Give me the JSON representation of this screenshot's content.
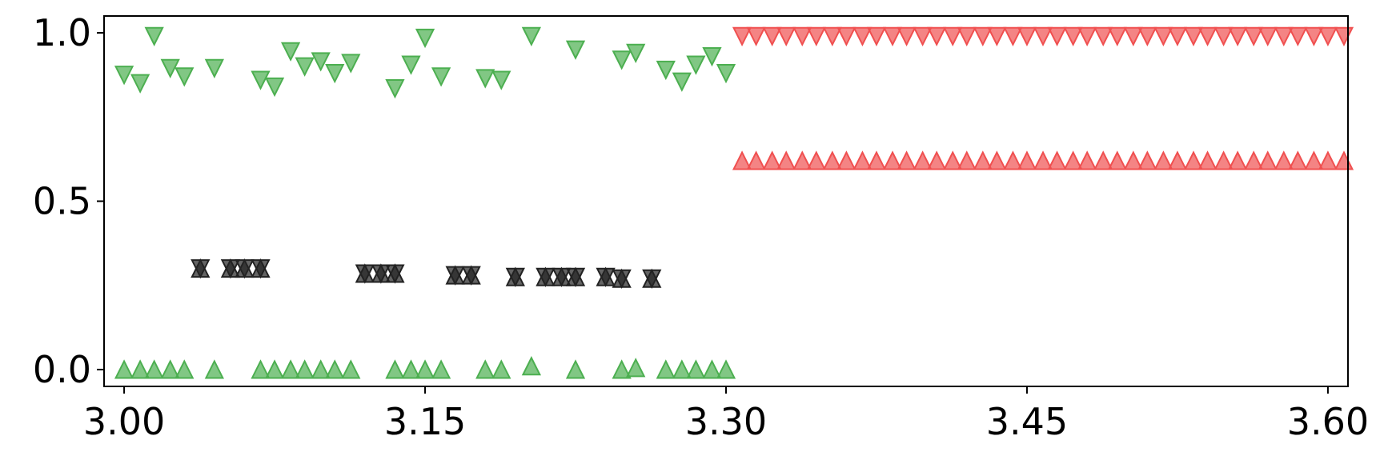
{
  "chart_data": {
    "type": "scatter",
    "title": "",
    "xlabel": "",
    "ylabel": "",
    "xlim": [
      2.99,
      3.61
    ],
    "ylim": [
      -0.05,
      1.05
    ],
    "grid": false,
    "legend": "none",
    "x_ticks": [
      3.0,
      3.15,
      3.3,
      3.45,
      3.6
    ],
    "x_tick_labels": [
      "3.00",
      "3.15",
      "3.30",
      "3.45",
      "3.60"
    ],
    "y_ticks": [
      0.0,
      0.5,
      1.0
    ],
    "y_tick_labels": [
      "0.0",
      "0.5",
      "1.0"
    ],
    "series": [
      {
        "marker": "triangle-down",
        "color": "#4caf50",
        "points": [
          [
            3.0,
            0.875
          ],
          [
            3.008,
            0.85
          ],
          [
            3.015,
            0.99
          ],
          [
            3.023,
            0.895
          ],
          [
            3.03,
            0.87
          ],
          [
            3.045,
            0.895
          ],
          [
            3.068,
            0.86
          ],
          [
            3.075,
            0.84
          ],
          [
            3.083,
            0.945
          ],
          [
            3.09,
            0.9
          ],
          [
            3.098,
            0.915
          ],
          [
            3.105,
            0.88
          ],
          [
            3.113,
            0.91
          ],
          [
            3.135,
            0.835
          ],
          [
            3.143,
            0.905
          ],
          [
            3.15,
            0.985
          ],
          [
            3.158,
            0.87
          ],
          [
            3.18,
            0.865
          ],
          [
            3.188,
            0.86
          ],
          [
            3.203,
            0.99
          ],
          [
            3.225,
            0.95
          ],
          [
            3.248,
            0.92
          ],
          [
            3.255,
            0.94
          ],
          [
            3.27,
            0.89
          ],
          [
            3.278,
            0.855
          ],
          [
            3.285,
            0.905
          ],
          [
            3.293,
            0.93
          ],
          [
            3.3,
            0.88
          ]
        ]
      },
      {
        "marker": "triangle-up",
        "color": "#4caf50",
        "points": [
          [
            3.0,
            0.0
          ],
          [
            3.008,
            0.0
          ],
          [
            3.015,
            0.0
          ],
          [
            3.023,
            0.0
          ],
          [
            3.03,
            0.0
          ],
          [
            3.045,
            0.0
          ],
          [
            3.068,
            0.0
          ],
          [
            3.075,
            0.0
          ],
          [
            3.083,
            0.0
          ],
          [
            3.09,
            0.0
          ],
          [
            3.098,
            0.0
          ],
          [
            3.105,
            0.0
          ],
          [
            3.113,
            0.0
          ],
          [
            3.135,
            0.0
          ],
          [
            3.143,
            0.0
          ],
          [
            3.15,
            0.0
          ],
          [
            3.158,
            0.0
          ],
          [
            3.18,
            0.0
          ],
          [
            3.188,
            0.0
          ],
          [
            3.203,
            0.01
          ],
          [
            3.225,
            0.0
          ],
          [
            3.248,
            0.0
          ],
          [
            3.255,
            0.005
          ],
          [
            3.27,
            0.0
          ],
          [
            3.278,
            0.0
          ],
          [
            3.285,
            0.0
          ],
          [
            3.293,
            0.0
          ],
          [
            3.3,
            0.0
          ]
        ]
      },
      {
        "marker": "triangle-up",
        "color": "#222222",
        "points": [
          [
            3.038,
            0.3
          ],
          [
            3.053,
            0.3
          ],
          [
            3.06,
            0.3
          ],
          [
            3.068,
            0.3
          ],
          [
            3.12,
            0.285
          ],
          [
            3.128,
            0.285
          ],
          [
            3.135,
            0.285
          ],
          [
            3.165,
            0.28
          ],
          [
            3.173,
            0.28
          ],
          [
            3.195,
            0.275
          ],
          [
            3.21,
            0.275
          ],
          [
            3.218,
            0.275
          ],
          [
            3.225,
            0.275
          ],
          [
            3.24,
            0.275
          ],
          [
            3.248,
            0.27
          ],
          [
            3.263,
            0.27
          ]
        ]
      },
      {
        "marker": "triangle-down",
        "color": "#222222",
        "points": [
          [
            3.038,
            0.3
          ],
          [
            3.053,
            0.3
          ],
          [
            3.06,
            0.3
          ],
          [
            3.068,
            0.3
          ],
          [
            3.12,
            0.285
          ],
          [
            3.128,
            0.285
          ],
          [
            3.135,
            0.285
          ],
          [
            3.165,
            0.28
          ],
          [
            3.173,
            0.28
          ],
          [
            3.195,
            0.275
          ],
          [
            3.21,
            0.275
          ],
          [
            3.218,
            0.275
          ],
          [
            3.225,
            0.275
          ],
          [
            3.24,
            0.275
          ],
          [
            3.248,
            0.27
          ],
          [
            3.263,
            0.27
          ]
        ]
      },
      {
        "marker": "triangle-down",
        "color": "#f05050",
        "points": [
          [
            3.308,
            0.99
          ],
          [
            3.315,
            0.99
          ],
          [
            3.323,
            0.99
          ],
          [
            3.33,
            0.99
          ],
          [
            3.338,
            0.99
          ],
          [
            3.345,
            0.99
          ],
          [
            3.353,
            0.99
          ],
          [
            3.36,
            0.99
          ],
          [
            3.368,
            0.99
          ],
          [
            3.375,
            0.99
          ],
          [
            3.383,
            0.99
          ],
          [
            3.39,
            0.99
          ],
          [
            3.398,
            0.99
          ],
          [
            3.405,
            0.99
          ],
          [
            3.413,
            0.99
          ],
          [
            3.42,
            0.99
          ],
          [
            3.428,
            0.99
          ],
          [
            3.435,
            0.99
          ],
          [
            3.443,
            0.99
          ],
          [
            3.45,
            0.99
          ],
          [
            3.458,
            0.99
          ],
          [
            3.465,
            0.99
          ],
          [
            3.473,
            0.99
          ],
          [
            3.48,
            0.99
          ],
          [
            3.488,
            0.99
          ],
          [
            3.495,
            0.99
          ],
          [
            3.503,
            0.99
          ],
          [
            3.51,
            0.99
          ],
          [
            3.518,
            0.99
          ],
          [
            3.525,
            0.99
          ],
          [
            3.533,
            0.99
          ],
          [
            3.54,
            0.99
          ],
          [
            3.548,
            0.99
          ],
          [
            3.555,
            0.99
          ],
          [
            3.563,
            0.99
          ],
          [
            3.57,
            0.99
          ],
          [
            3.578,
            0.99
          ],
          [
            3.585,
            0.99
          ],
          [
            3.593,
            0.99
          ],
          [
            3.6,
            0.99
          ],
          [
            3.608,
            0.99
          ]
        ]
      },
      {
        "marker": "triangle-up",
        "color": "#f05050",
        "points": [
          [
            3.308,
            0.62
          ],
          [
            3.315,
            0.62
          ],
          [
            3.323,
            0.62
          ],
          [
            3.33,
            0.62
          ],
          [
            3.338,
            0.62
          ],
          [
            3.345,
            0.62
          ],
          [
            3.353,
            0.62
          ],
          [
            3.36,
            0.62
          ],
          [
            3.368,
            0.62
          ],
          [
            3.375,
            0.62
          ],
          [
            3.383,
            0.62
          ],
          [
            3.39,
            0.62
          ],
          [
            3.398,
            0.62
          ],
          [
            3.405,
            0.62
          ],
          [
            3.413,
            0.62
          ],
          [
            3.42,
            0.62
          ],
          [
            3.428,
            0.62
          ],
          [
            3.435,
            0.62
          ],
          [
            3.443,
            0.62
          ],
          [
            3.45,
            0.62
          ],
          [
            3.458,
            0.62
          ],
          [
            3.465,
            0.62
          ],
          [
            3.473,
            0.62
          ],
          [
            3.48,
            0.62
          ],
          [
            3.488,
            0.62
          ],
          [
            3.495,
            0.62
          ],
          [
            3.503,
            0.62
          ],
          [
            3.51,
            0.62
          ],
          [
            3.518,
            0.62
          ],
          [
            3.525,
            0.62
          ],
          [
            3.533,
            0.62
          ],
          [
            3.54,
            0.62
          ],
          [
            3.548,
            0.62
          ],
          [
            3.555,
            0.62
          ],
          [
            3.563,
            0.62
          ],
          [
            3.57,
            0.62
          ],
          [
            3.578,
            0.62
          ],
          [
            3.585,
            0.62
          ],
          [
            3.593,
            0.62
          ],
          [
            3.6,
            0.62
          ],
          [
            3.608,
            0.62
          ]
        ]
      }
    ]
  }
}
